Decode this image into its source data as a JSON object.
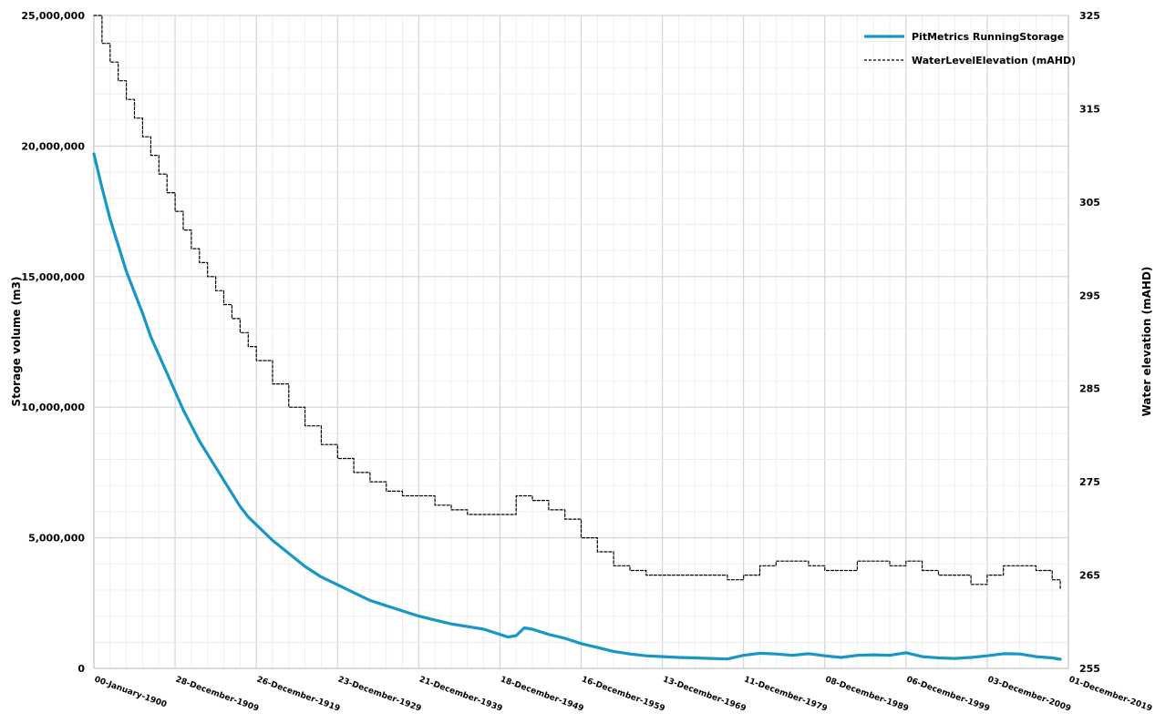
{
  "chart_data": {
    "type": "line",
    "xlabel": "",
    "ylabel": "Storage volume (m3)",
    "y2label": "Water elevation (mAHD)",
    "x_tick_labels": [
      "00-January-1900",
      "28-December-1909",
      "26-December-1919",
      "23-December-1929",
      "21-December-1939",
      "18-December-1949",
      "16-December-1959",
      "13-December-1969",
      "11-December-1979",
      "08-December-1989",
      "06-December-1999",
      "03-December-2009",
      "01-December-2019"
    ],
    "xlim": [
      1900.0,
      2020.0
    ],
    "ylim": [
      0,
      25000000
    ],
    "y2lim": [
      255,
      325
    ],
    "y_ticks": [
      0,
      5000000,
      10000000,
      15000000,
      20000000,
      25000000
    ],
    "y_tick_labels": [
      "0",
      "5,000,000",
      "10,000,000",
      "15,000,000",
      "20,000,000",
      "25,000,000"
    ],
    "y2_ticks": [
      255,
      265,
      275,
      285,
      295,
      305,
      315,
      325
    ],
    "y2_tick_labels": [
      "255",
      "265",
      "275",
      "285",
      "295",
      "305",
      "315",
      "325"
    ],
    "grid": true,
    "legend_position": "top-right",
    "series": [
      {
        "name": "PitMetrics RunningStorage",
        "axis": "left",
        "color": "#1796c8",
        "style": "solid",
        "x": [
          1900,
          1901,
          1902,
          1903,
          1904,
          1905,
          1906,
          1907,
          1908,
          1909,
          1910,
          1911,
          1912,
          1913,
          1914,
          1915,
          1916,
          1917,
          1918,
          1919,
          1920,
          1922,
          1924,
          1926,
          1928,
          1930,
          1932,
          1934,
          1936,
          1938,
          1940,
          1942,
          1944,
          1946,
          1948,
          1950,
          1951,
          1952,
          1953,
          1954,
          1956,
          1958,
          1960,
          1962,
          1964,
          1966,
          1968,
          1970,
          1972,
          1974,
          1976,
          1978,
          1980,
          1982,
          1984,
          1986,
          1988,
          1990,
          1992,
          1994,
          1996,
          1998,
          2000,
          2002,
          2004,
          2006,
          2008,
          2010,
          2012,
          2014,
          2016,
          2018,
          2019
        ],
        "values": [
          19700000,
          18400000,
          17200000,
          16200000,
          15200000,
          14400000,
          13600000,
          12700000,
          12000000,
          11300000,
          10600000,
          9900000,
          9300000,
          8700000,
          8200000,
          7700000,
          7200000,
          6700000,
          6200000,
          5800000,
          5500000,
          4900000,
          4400000,
          3900000,
          3500000,
          3200000,
          2900000,
          2600000,
          2400000,
          2200000,
          2000000,
          1850000,
          1700000,
          1600000,
          1500000,
          1300000,
          1200000,
          1250000,
          1550000,
          1500000,
          1300000,
          1150000,
          950000,
          800000,
          650000,
          550000,
          480000,
          450000,
          420000,
          400000,
          380000,
          360000,
          500000,
          580000,
          550000,
          500000,
          560000,
          480000,
          420000,
          500000,
          520000,
          500000,
          600000,
          450000,
          400000,
          380000,
          420000,
          480000,
          560000,
          550000,
          450000,
          400000,
          350000
        ]
      },
      {
        "name": "WaterLevelElevation (mAHD)",
        "axis": "right",
        "color": "#000000",
        "style": "dashed",
        "x": [
          1900,
          1901,
          1902,
          1903,
          1904,
          1905,
          1906,
          1907,
          1908,
          1909,
          1910,
          1911,
          1912,
          1913,
          1914,
          1915,
          1916,
          1917,
          1918,
          1919,
          1920,
          1922,
          1924,
          1926,
          1928,
          1930,
          1932,
          1934,
          1936,
          1938,
          1940,
          1942,
          1944,
          1946,
          1948,
          1950,
          1951,
          1952,
          1953,
          1954,
          1956,
          1958,
          1960,
          1962,
          1964,
          1966,
          1968,
          1970,
          1972,
          1974,
          1976,
          1978,
          1980,
          1982,
          1984,
          1986,
          1988,
          1990,
          1992,
          1994,
          1996,
          1998,
          2000,
          2002,
          2004,
          2006,
          2008,
          2010,
          2012,
          2014,
          2016,
          2018,
          2019
        ],
        "values": [
          325,
          322,
          320,
          318,
          316,
          314,
          312,
          310,
          308,
          306,
          304,
          302,
          300,
          298.5,
          297,
          295.5,
          294,
          292.5,
          291,
          289.5,
          288,
          285.5,
          283,
          281,
          279,
          277.5,
          276,
          275,
          274,
          273.5,
          273.5,
          272.5,
          272,
          271.5,
          271.5,
          271.5,
          271.5,
          273.5,
          273.5,
          273,
          272,
          271,
          269,
          267.5,
          266,
          265.5,
          265,
          265,
          265,
          265,
          265,
          264.5,
          265,
          266,
          266.5,
          266.5,
          266,
          265.5,
          265.5,
          266.5,
          266.5,
          266,
          266.5,
          265.5,
          265,
          265,
          264,
          265,
          266,
          266,
          265.5,
          264.5,
          263.5
        ]
      }
    ]
  }
}
